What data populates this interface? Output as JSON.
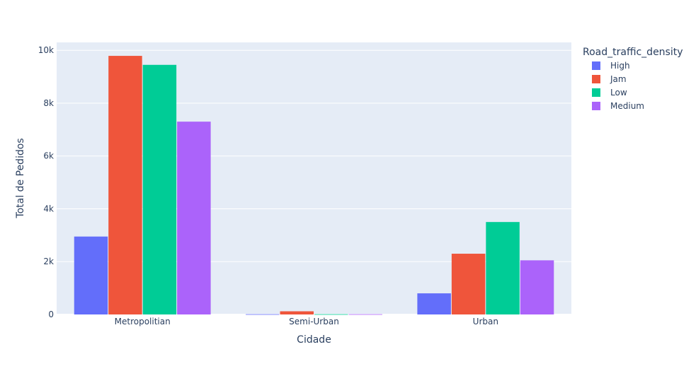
{
  "chart_data": {
    "type": "bar",
    "categories": [
      "Metropolitian",
      "Semi-Urban",
      "Urban"
    ],
    "series": [
      {
        "name": "High",
        "color": "#636efa",
        "values": [
          2950,
          10,
          800
        ]
      },
      {
        "name": "Jam",
        "color": "#ef553b",
        "values": [
          9790,
          120,
          2300
        ]
      },
      {
        "name": "Low",
        "color": "#00cc96",
        "values": [
          9450,
          10,
          3500
        ]
      },
      {
        "name": "Medium",
        "color": "#ab63fa",
        "values": [
          7300,
          10,
          2050
        ]
      }
    ],
    "xlabel": "Cidade",
    "ylabel": "Total de Pedidos",
    "ylim": [
      0,
      10300
    ],
    "yticks": [
      0,
      2000,
      4000,
      6000,
      8000,
      10000
    ],
    "ytick_labels": [
      "0",
      "2k",
      "4k",
      "6k",
      "8k",
      "10k"
    ],
    "legend_title": "Road_traffic_density",
    "legend_position": "right",
    "grid": true,
    "plot_bgcolor": "#e5ecf6"
  }
}
